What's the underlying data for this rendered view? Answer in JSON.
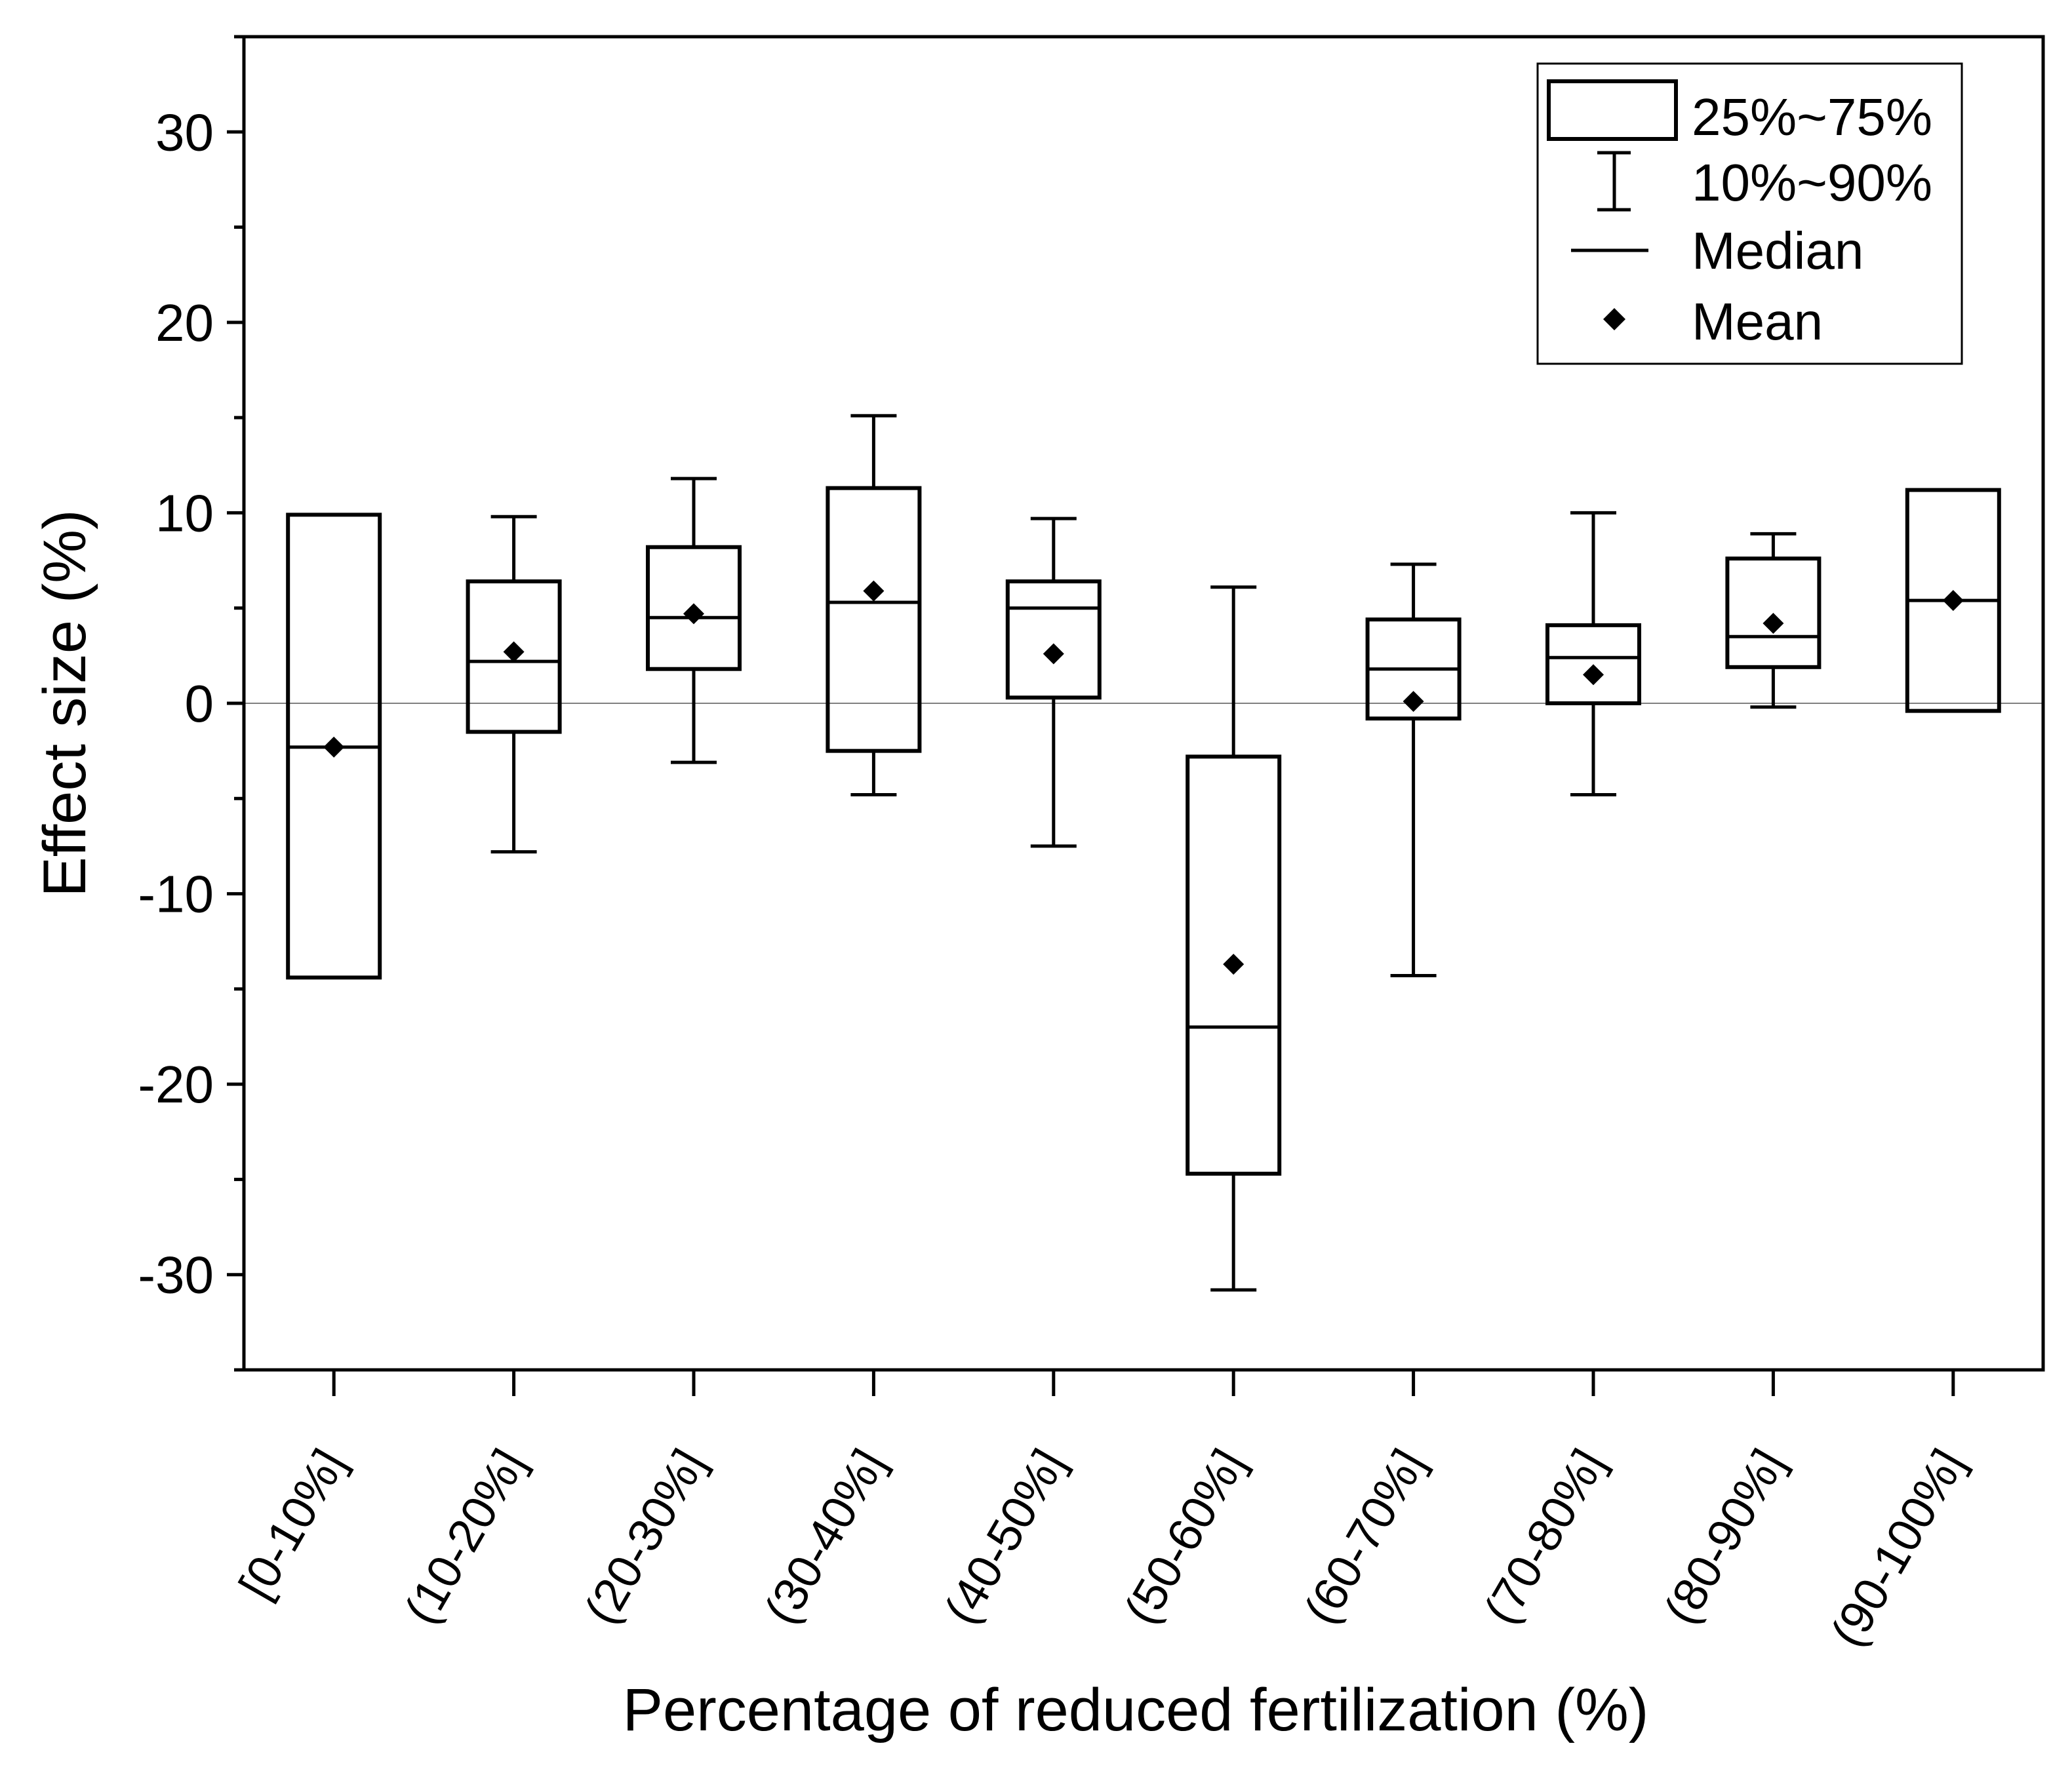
{
  "chart_data": {
    "type": "box",
    "title": "",
    "xlabel": "Percentage of reduced fertilization (%)",
    "ylabel": "Effect size (%)",
    "ylim": [
      -35,
      35
    ],
    "yticks": [
      -30,
      -20,
      -10,
      0,
      10,
      20,
      30
    ],
    "ytick_labels": [
      "-30",
      "-20",
      "-10",
      "0",
      "10",
      "20",
      "30"
    ],
    "reference_line_y": 0,
    "categories": [
      "[0-10%]",
      "(10-20%]",
      "(20-30%]",
      "(30-40%]",
      "(40-50%]",
      "(50-60%]",
      "(60-70%]",
      "(70-80%]",
      "(80-90%]",
      "(90-100%]"
    ],
    "boxes": [
      {
        "category": "[0-10%]",
        "p10": null,
        "q1": -14.4,
        "median": -2.3,
        "q3": 9.9,
        "p90": null,
        "mean": -2.3
      },
      {
        "category": "(10-20%]",
        "p10": -7.8,
        "q1": -1.5,
        "median": 2.2,
        "q3": 6.4,
        "p90": 9.8,
        "mean": 2.7
      },
      {
        "category": "(20-30%]",
        "p10": -3.1,
        "q1": 1.8,
        "median": 4.5,
        "q3": 8.2,
        "p90": 11.8,
        "mean": 4.7
      },
      {
        "category": "(30-40%]",
        "p10": -4.8,
        "q1": -2.5,
        "median": 5.3,
        "q3": 11.3,
        "p90": 15.1,
        "mean": 5.9
      },
      {
        "category": "(40-50%]",
        "p10": -7.5,
        "q1": 0.3,
        "median": 5.0,
        "q3": 6.4,
        "p90": 9.7,
        "mean": 2.6
      },
      {
        "category": "(50-60%]",
        "p10": -30.8,
        "q1": -24.7,
        "median": -17.0,
        "q3": -2.8,
        "p90": 6.1,
        "mean": -13.7
      },
      {
        "category": "(60-70%]",
        "p10": -14.3,
        "q1": -0.8,
        "median": 1.8,
        "q3": 4.4,
        "p90": 7.3,
        "mean": 0.1
      },
      {
        "category": "(70-80%]",
        "p10": -4.8,
        "q1": 0.0,
        "median": 2.4,
        "q3": 4.1,
        "p90": 10.0,
        "mean": 1.5
      },
      {
        "category": "(80-90%]",
        "p10": -0.2,
        "q1": 1.9,
        "median": 3.5,
        "q3": 7.6,
        "p90": 8.9,
        "mean": 4.2
      },
      {
        "category": "(90-100%]",
        "p10": null,
        "q1": -0.4,
        "median": 5.4,
        "q3": 11.2,
        "p90": null,
        "mean": 5.4
      }
    ],
    "legend": {
      "position": "top-right",
      "entries": [
        {
          "symbol": "box",
          "label": "25%~75%"
        },
        {
          "symbol": "whisker",
          "label": "10%~90%"
        },
        {
          "symbol": "line",
          "label": "Median"
        },
        {
          "symbol": "diamond",
          "label": "Mean"
        }
      ]
    },
    "colors": {
      "stroke": "#000000",
      "reference_line": "#808080",
      "background": "#ffffff"
    }
  }
}
